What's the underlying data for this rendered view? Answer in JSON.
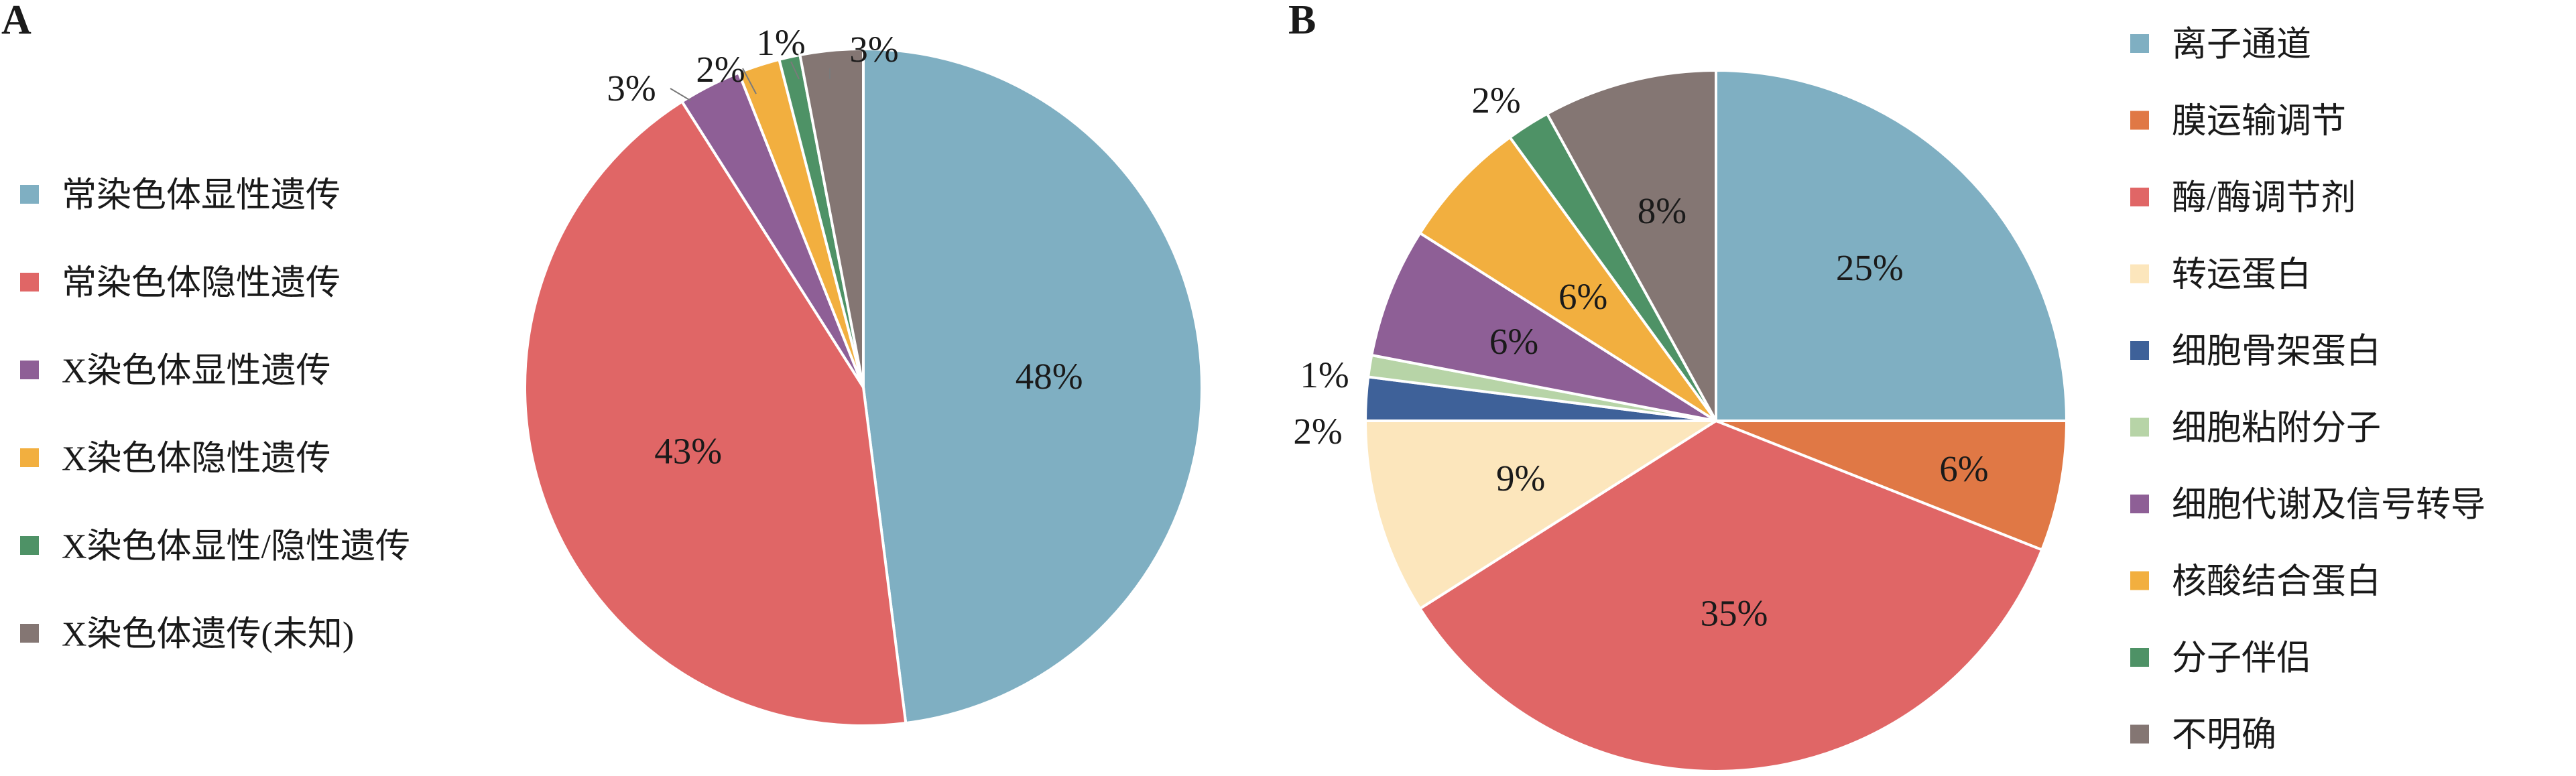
{
  "chart_data": [
    {
      "type": "pie",
      "panel_label": "A",
      "categories": [
        "常染色体显性遗传",
        "常染色体隐性遗传",
        "X染色体显性遗传",
        "X染色体隐性遗传",
        "X染色体显性/隐性遗传",
        "X染色体遗传(未知)"
      ],
      "values": [
        48,
        43,
        3,
        2,
        1,
        3
      ],
      "labels": [
        "48%",
        "43%",
        "3%",
        "2%",
        "1%",
        "3%"
      ],
      "colors": [
        "#7FAFC2",
        "#E06666",
        "#8E5F96",
        "#F2AF3F",
        "#4E9266",
        "#847673"
      ],
      "legend_position": "left"
    },
    {
      "type": "pie",
      "panel_label": "B",
      "categories": [
        "离子通道",
        "膜运输调节",
        "酶/酶调节剂",
        "转运蛋白",
        "细胞骨架蛋白",
        "细胞粘附分子",
        "细胞代谢及信号转导",
        "核酸结合蛋白",
        "分子伴侣",
        "不明确"
      ],
      "values": [
        25,
        6,
        35,
        9,
        2,
        1,
        6,
        6,
        2,
        8
      ],
      "labels": [
        "25%",
        "6%",
        "35%",
        "9%",
        "2%",
        "1%",
        "6%",
        "6%",
        "2%",
        "8%"
      ],
      "colors": [
        "#7FAFC2",
        "#E07845",
        "#E06666",
        "#FCE6BC",
        "#3E6199",
        "#B7D4A7",
        "#8E5F96",
        "#F2AF3F",
        "#4E9266",
        "#847673"
      ],
      "legend_position": "right"
    }
  ]
}
